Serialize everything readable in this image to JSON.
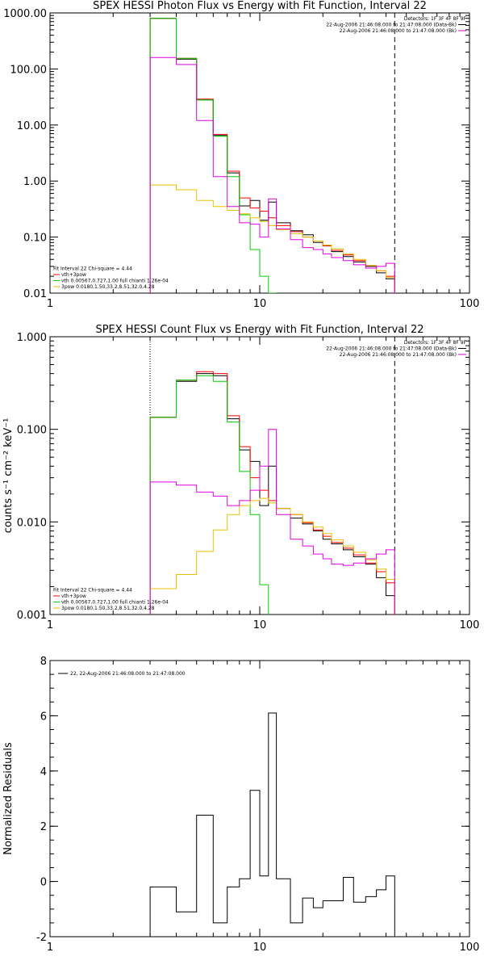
{
  "chart_data": [
    {
      "id": "photon",
      "type": "line",
      "title": "SPEX HESSI Photon Flux vs Energy with Fit Function, Interval 22",
      "xscale": "log",
      "yscale": "log",
      "xlim": [
        1,
        100
      ],
      "ylim": [
        0.01,
        1000
      ],
      "xticks": [
        {
          "v": 1,
          "label": "1"
        },
        {
          "v": 10,
          "label": "10"
        },
        {
          "v": 100,
          "label": "100"
        }
      ],
      "yticks": [
        {
          "v": 1000,
          "label": "1000.00"
        },
        {
          "v": 100,
          "label": "100.00"
        },
        {
          "v": 10,
          "label": "10.00"
        },
        {
          "v": 1,
          "label": "1.00"
        },
        {
          "v": 0.1,
          "label": "0.10"
        },
        {
          "v": 0.01,
          "label": "0.01"
        }
      ],
      "ylabel": "",
      "vlines": [
        {
          "x": 3,
          "style": "dotted"
        },
        {
          "x": 44,
          "style": "dashed"
        }
      ],
      "legend_tr": [
        "Detectors: 1F 3F 4F 8F 9F",
        "22-Aug-2006 21:46:08.000 to 21:47:08.000 (Data-Bk)",
        "22-Aug-2006 21:46:08.000 to 21:47:08.000 (Bk)"
      ],
      "legend_tr_colors": [
        "",
        "#000000",
        "#e000e0"
      ],
      "legend_bl": [
        "Fit Interval 22   Chi-square = 4.44",
        "vth+3pow",
        "vth 0.00567,0.727,1.00  full chianti 1.26e-04",
        "3pow 0.0180,1.50,33.2,8.51,32.0,4.28"
      ],
      "legend_bl_colors": [
        "",
        "#ff0000",
        "#00cc00",
        "#e8c000"
      ],
      "edges": [
        3,
        4,
        5,
        6,
        7,
        8,
        9,
        10,
        11,
        12,
        14,
        16,
        18,
        20,
        22,
        25,
        28,
        32,
        36,
        40,
        44
      ],
      "series": [
        {
          "name": "Data-Bk",
          "color": "#000000",
          "values": [
            800,
            150,
            28,
            6.5,
            1.4,
            0.36,
            0.45,
            0.2,
            0.42,
            0.18,
            0.13,
            0.11,
            0.08,
            0.07,
            0.055,
            0.045,
            0.036,
            0.03,
            0.023,
            0.018
          ]
        },
        {
          "name": "vth+3pow",
          "color": "#ff0000",
          "values": [
            800,
            155,
            29,
            6.8,
            1.5,
            0.5,
            0.33,
            0.29,
            0.22,
            0.16,
            0.125,
            0.1,
            0.085,
            0.07,
            0.058,
            0.048,
            0.038,
            0.031,
            0.025,
            0.02
          ]
        },
        {
          "name": "vth",
          "color": "#00cc00",
          "values": [
            800,
            155,
            28,
            6.3,
            1.2,
            0.25,
            0.06,
            0.02,
            0.005
          ]
        },
        {
          "name": "3pow",
          "color": "#e8c000",
          "values": [
            0.85,
            0.7,
            0.45,
            0.35,
            0.3,
            0.26,
            0.22,
            0.19,
            0.16,
            0.135,
            0.115,
            0.1,
            0.085,
            0.072,
            0.062,
            0.05,
            0.04,
            0.031,
            0.025,
            0.019
          ]
        },
        {
          "name": "Bk",
          "color": "#e000e0",
          "values": [
            160,
            120,
            12,
            1.2,
            0.35,
            0.18,
            0.17,
            0.1,
            0.48,
            0.14,
            0.09,
            0.065,
            0.06,
            0.05,
            0.043,
            0.038,
            0.032,
            0.028,
            0.03,
            0.034
          ]
        }
      ]
    },
    {
      "id": "count",
      "type": "line",
      "title": "SPEX HESSI Count Flux vs Energy with Fit Function, Interval 22",
      "xscale": "log",
      "yscale": "log",
      "xlim": [
        1,
        100
      ],
      "ylim": [
        0.001,
        1
      ],
      "xticks": [
        {
          "v": 1,
          "label": "1"
        },
        {
          "v": 10,
          "label": "10"
        },
        {
          "v": 100,
          "label": "100"
        }
      ],
      "yticks": [
        {
          "v": 1,
          "label": "1.000"
        },
        {
          "v": 0.1,
          "label": "0.100"
        },
        {
          "v": 0.01,
          "label": "0.010"
        },
        {
          "v": 0.001,
          "label": "0.001"
        }
      ],
      "ylabel": "counts s⁻¹ cm⁻² keV⁻¹",
      "vlines": [
        {
          "x": 3,
          "style": "dotted"
        },
        {
          "x": 44,
          "style": "dashed"
        }
      ],
      "legend_tr": [
        "Detectors: 1F 3F 4F 8F 9F",
        "22-Aug-2006 21:46:08.000 to 21:47:08.000 (Data-Bk)",
        "22-Aug-2006 21:46:08.000 to 21:47:08.000 (Bk)"
      ],
      "legend_tr_colors": [
        "",
        "#000000",
        "#e000e0"
      ],
      "legend_bl": [
        "Fit Interval 22   Chi-square = 4.44",
        "vth+3pow",
        "vth 0.00567,0.727,1.00  full chianti 1.26e-04",
        "3pow 0.0180,1.50,33.2,8.51,32.0,4.28"
      ],
      "legend_bl_colors": [
        "",
        "#ff0000",
        "#00cc00",
        "#e8c000"
      ],
      "edges": [
        3,
        4,
        5,
        6,
        7,
        8,
        9,
        10,
        11,
        12,
        14,
        16,
        18,
        20,
        22,
        25,
        28,
        32,
        36,
        40,
        44
      ],
      "series": [
        {
          "name": "Data-Bk",
          "color": "#000000",
          "values": [
            0.135,
            0.33,
            0.4,
            0.38,
            0.13,
            0.06,
            0.045,
            0.015,
            0.04,
            0.014,
            0.011,
            0.0095,
            0.008,
            0.0065,
            0.0058,
            0.005,
            0.0042,
            0.0035,
            0.0025,
            0.0016
          ]
        },
        {
          "name": "vth+3pow",
          "color": "#ff0000",
          "values": [
            0.135,
            0.34,
            0.42,
            0.4,
            0.14,
            0.065,
            0.03,
            0.022,
            0.017,
            0.014,
            0.012,
            0.0098,
            0.0082,
            0.007,
            0.006,
            0.0052,
            0.0044,
            0.0036,
            0.0029,
            0.0022
          ]
        },
        {
          "name": "vth",
          "color": "#00cc00",
          "values": [
            0.135,
            0.34,
            0.38,
            0.33,
            0.12,
            0.035,
            0.012,
            0.0021
          ]
        },
        {
          "name": "3pow",
          "color": "#e8c000",
          "values": [
            0.0019,
            0.0027,
            0.0048,
            0.0082,
            0.012,
            0.015,
            0.017,
            0.018,
            0.016,
            0.014,
            0.012,
            0.01,
            0.0088,
            0.0075,
            0.0064,
            0.0055,
            0.0047,
            0.0039,
            0.0031,
            0.0024
          ]
        },
        {
          "name": "Bk",
          "color": "#e000e0",
          "values": [
            0.027,
            0.025,
            0.021,
            0.019,
            0.015,
            0.017,
            0.022,
            0.04,
            0.1,
            0.012,
            0.0065,
            0.0055,
            0.0045,
            0.004,
            0.0035,
            0.0034,
            0.0036,
            0.004,
            0.0045,
            0.005
          ]
        }
      ]
    },
    {
      "id": "residuals",
      "type": "line",
      "title": "",
      "xscale": "log",
      "yscale": "linear",
      "xlim": [
        1,
        100
      ],
      "ylim": [
        -2,
        8
      ],
      "xticks": [
        {
          "v": 1,
          "label": "1"
        },
        {
          "v": 10,
          "label": "10"
        },
        {
          "v": 100,
          "label": "100"
        }
      ],
      "yticks": [
        {
          "v": 8,
          "label": "8"
        },
        {
          "v": 6,
          "label": "6"
        },
        {
          "v": 4,
          "label": "4"
        },
        {
          "v": 2,
          "label": "2"
        },
        {
          "v": 0,
          "label": "0"
        },
        {
          "v": -2,
          "label": "-2"
        }
      ],
      "ylabel": "Normalized Residuals",
      "vlines": [],
      "legend_tl": [
        "22, 22-Aug-2006 21:46:08.000 to 21:47:08.000"
      ],
      "legend_tl_colors": [
        "#000000"
      ],
      "edges": [
        3,
        4,
        5,
        6,
        7,
        8,
        9,
        10,
        11,
        12,
        14,
        16,
        18,
        20,
        22,
        25,
        28,
        32,
        36,
        40,
        44
      ],
      "series": [
        {
          "name": "22",
          "color": "#000000",
          "values": [
            -0.2,
            -1.1,
            2.4,
            -1.5,
            -0.2,
            0.1,
            3.3,
            0.2,
            6.1,
            0.1,
            -1.5,
            -0.6,
            -0.95,
            -0.7,
            -0.7,
            0.15,
            -0.75,
            -0.55,
            -0.3,
            0.2
          ]
        }
      ]
    }
  ]
}
